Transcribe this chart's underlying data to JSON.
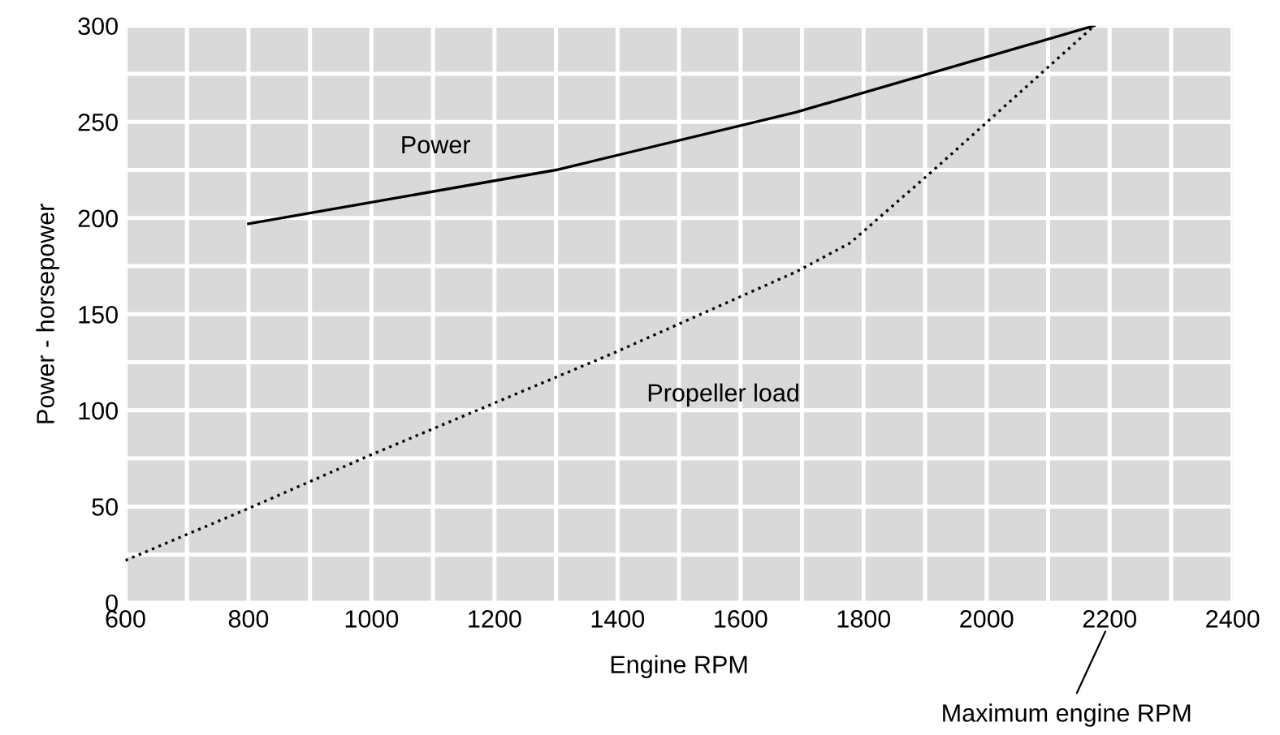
{
  "chart_data": {
    "type": "line",
    "xlabel": "Engine RPM",
    "ylabel": "Power - horsepower",
    "xlim": [
      600,
      2400
    ],
    "ylim": [
      0,
      300
    ],
    "xticks": [
      600,
      {
        "value": 700,
        "label": null
      },
      800,
      {
        "value": 900,
        "label": null
      },
      1000,
      {
        "value": 1100,
        "label": null
      },
      1200,
      {
        "value": 1300,
        "label": null
      },
      1400,
      {
        "value": 1500,
        "label": null
      },
      1600,
      {
        "value": 1700,
        "label": null
      },
      1800,
      {
        "value": 1900,
        "label": null
      },
      2000,
      {
        "value": 2100,
        "label": null
      },
      2200,
      {
        "value": 2300,
        "label": null
      },
      2400
    ],
    "yticks": [
      0,
      {
        "value": 25,
        "label": null
      },
      50,
      {
        "value": 75,
        "label": null
      },
      100,
      {
        "value": 125,
        "label": null
      },
      150,
      {
        "value": 175,
        "label": null
      },
      200,
      {
        "value": 225,
        "label": null
      },
      250,
      {
        "value": 275,
        "label": null
      },
      300
    ],
    "grid": true,
    "legend": false,
    "series": [
      {
        "name": "Power",
        "color": "#000000",
        "line_style": "solid",
        "x": [
          800,
          1300,
          1690,
          2175
        ],
        "values": [
          197,
          225,
          255,
          300
        ]
      },
      {
        "name": "Propeller load",
        "color": "#000000",
        "line_style": "dotted",
        "x": [
          600,
          800,
          1000,
          1395,
          1690,
          1778,
          1914,
          2088,
          2175
        ],
        "values": [
          22,
          49,
          77,
          130,
          172,
          187,
          225,
          275,
          300
        ]
      }
    ],
    "annotations": [
      "Maximum engine RPM"
    ]
  }
}
